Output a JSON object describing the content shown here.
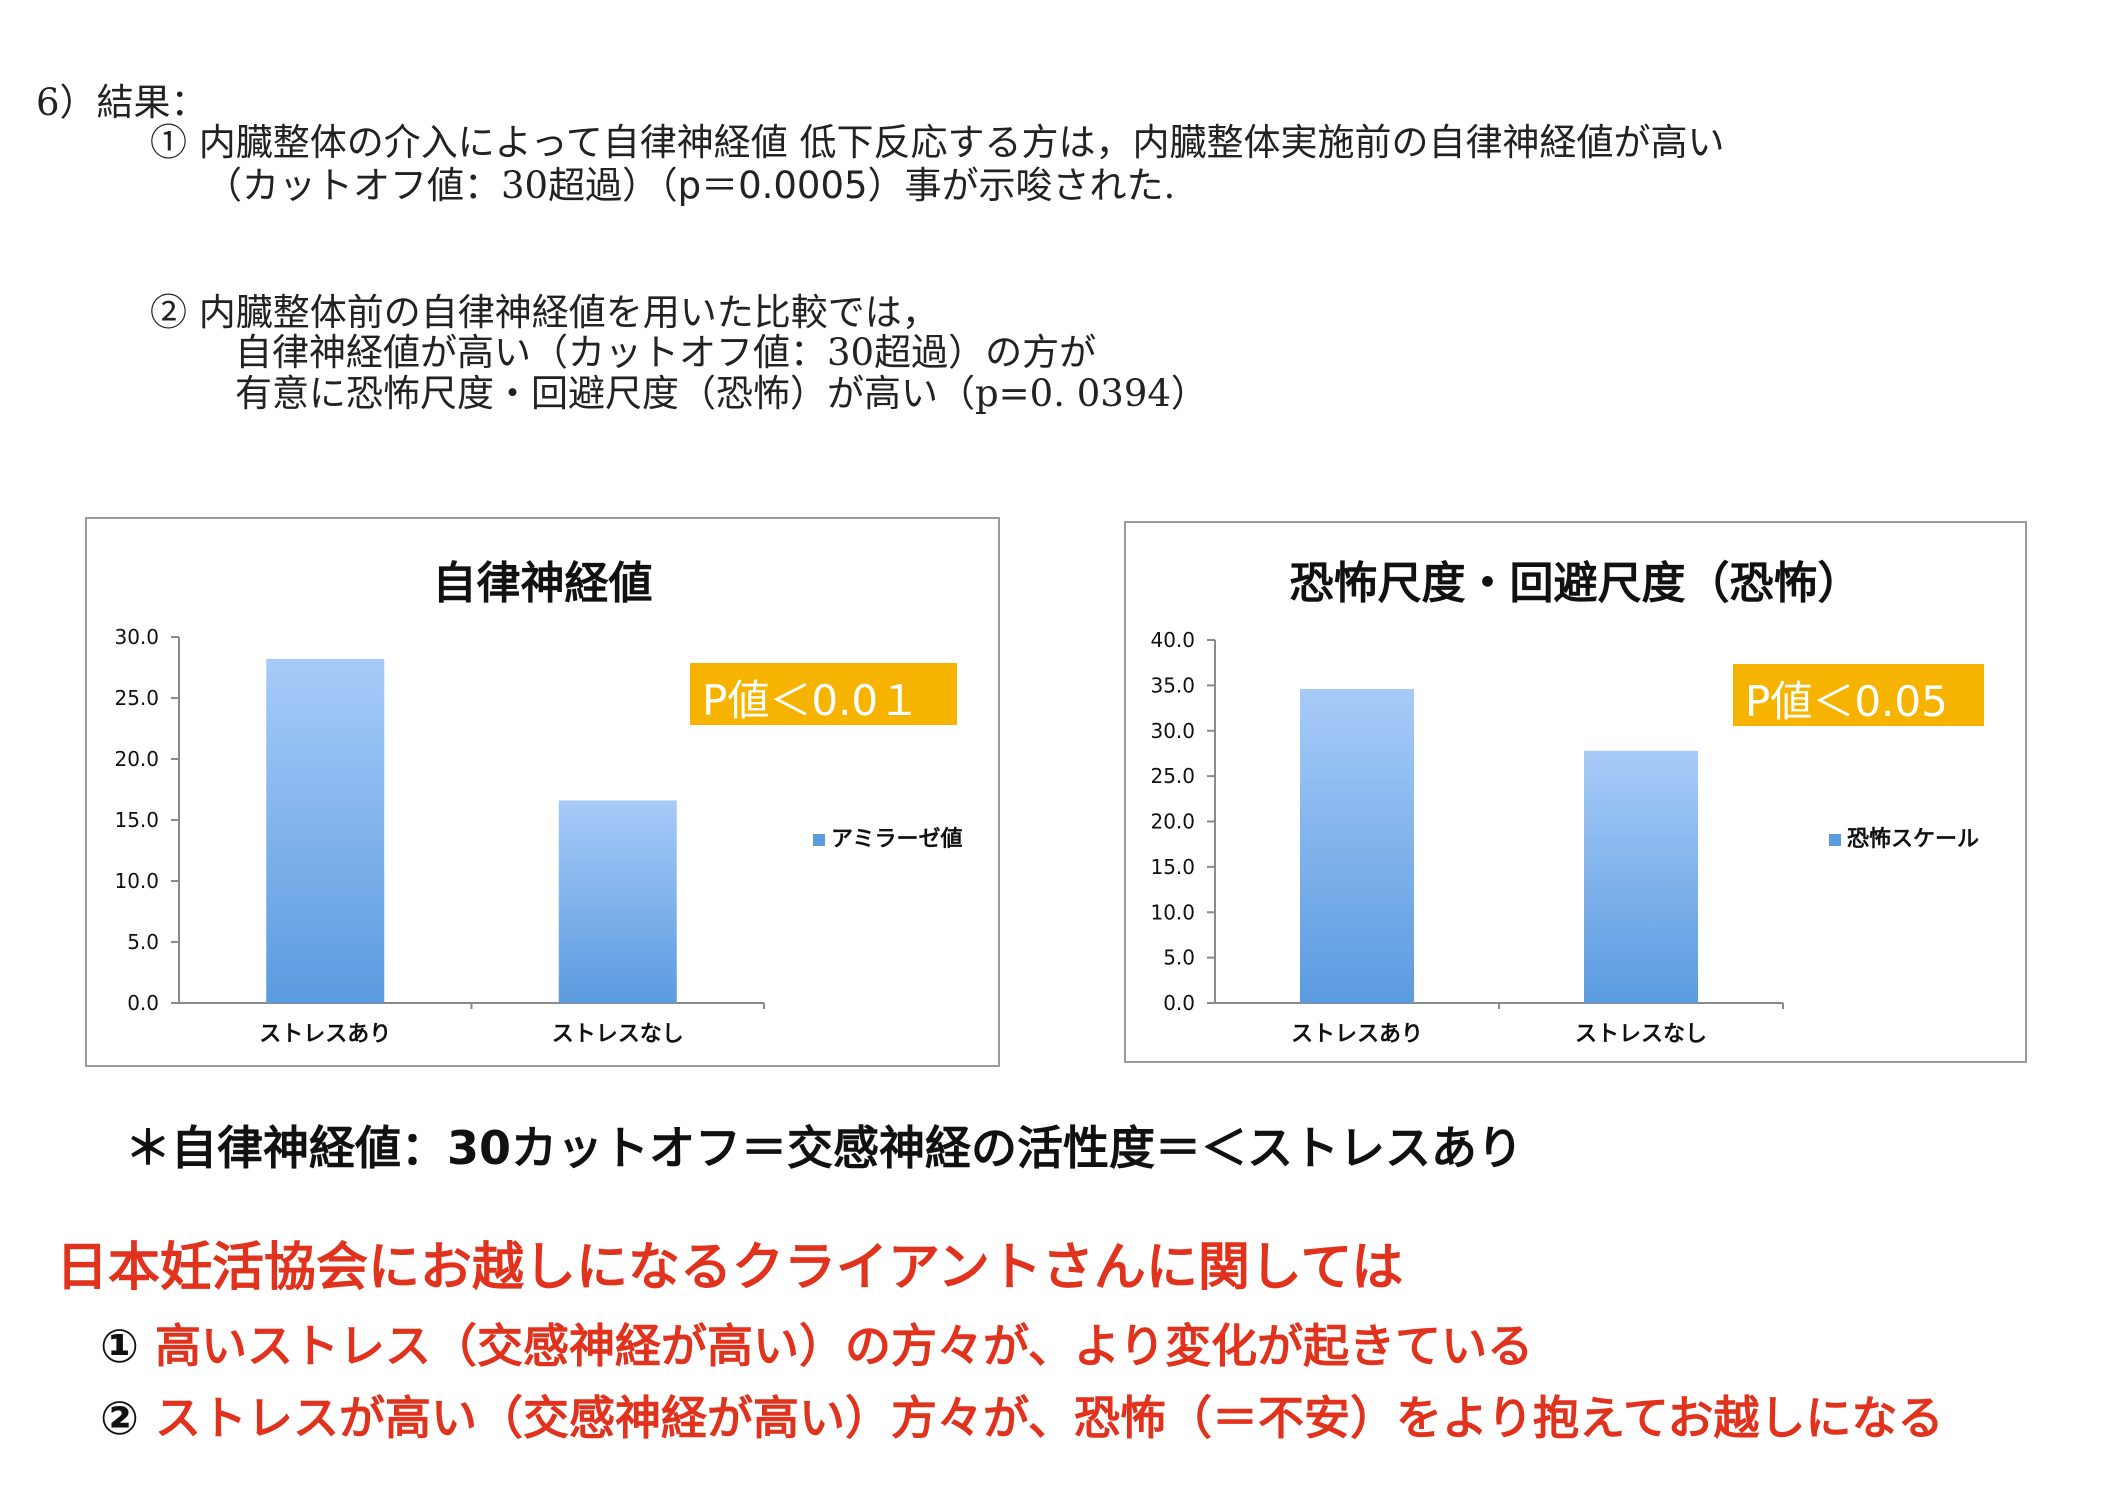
{
  "section": {
    "heading": "6）結果：",
    "item1_line1": "①  内臓整体の介入によって自律神経値 低下反応する方は，内臓整体実施前の自律神経値が高い",
    "item1_line2_a": "（カットオフ値：30超過）（",
    "item1_line2_p": "p＝0.0005",
    "item1_line2_b": "）事が示唆された.",
    "item2_line1": "②  内臓整体前の自律神経値を用いた比較では，",
    "item2_line2": "自律神経値が高い（カットオフ値：30超過）の方が",
    "item2_line3": "有意に恐怖尺度・回避尺度（恐怖）が高い（p=0. 0394）"
  },
  "charts": [
    {
      "p_label": "P値＜0.0１",
      "legend": "アミラーゼ値"
    },
    {
      "p_label": "P値＜0.05",
      "legend": "恐怖スケール"
    }
  ],
  "chart_data": [
    {
      "type": "bar",
      "title": "自律神経値",
      "categories": [
        "ストレスあり",
        "ストレスなし"
      ],
      "series": [
        {
          "name": "アミラーゼ値",
          "values": [
            28.2,
            16.6
          ]
        }
      ],
      "ylim": [
        0,
        30
      ],
      "yticks": [
        "0.0",
        "5.0",
        "10.0",
        "15.0",
        "20.0",
        "25.0",
        "30.0"
      ],
      "color": "#5b9be0",
      "legend_position": "right"
    },
    {
      "type": "bar",
      "title": "恐怖尺度・回避尺度（恐怖）",
      "categories": [
        "ストレスあり",
        "ストレスなし"
      ],
      "series": [
        {
          "name": "恐怖スケール",
          "values": [
            34.6,
            27.8
          ]
        }
      ],
      "ylim": [
        0,
        40
      ],
      "yticks": [
        "0.0",
        "5.0",
        "10.0",
        "15.0",
        "20.0",
        "25.0",
        "30.0",
        "35.0",
        "40.0"
      ],
      "color": "#5b9be0",
      "legend_position": "right"
    }
  ],
  "note": "＊自律神経値：30カットオフ＝交感神経の活性度＝＜ストレスあり",
  "conclusion": {
    "headline": "日本妊活協会にお越しになるクライアントさんに関しては",
    "point1_num": "①",
    "point1_text": "高いストレス（交感神経が高い）の方々が、より変化が起きている",
    "point2_num": "②",
    "point2_text": "ストレスが高い（交感神経が高い）方々が、恐怖（＝不安）をより抱えてお越しになる"
  }
}
